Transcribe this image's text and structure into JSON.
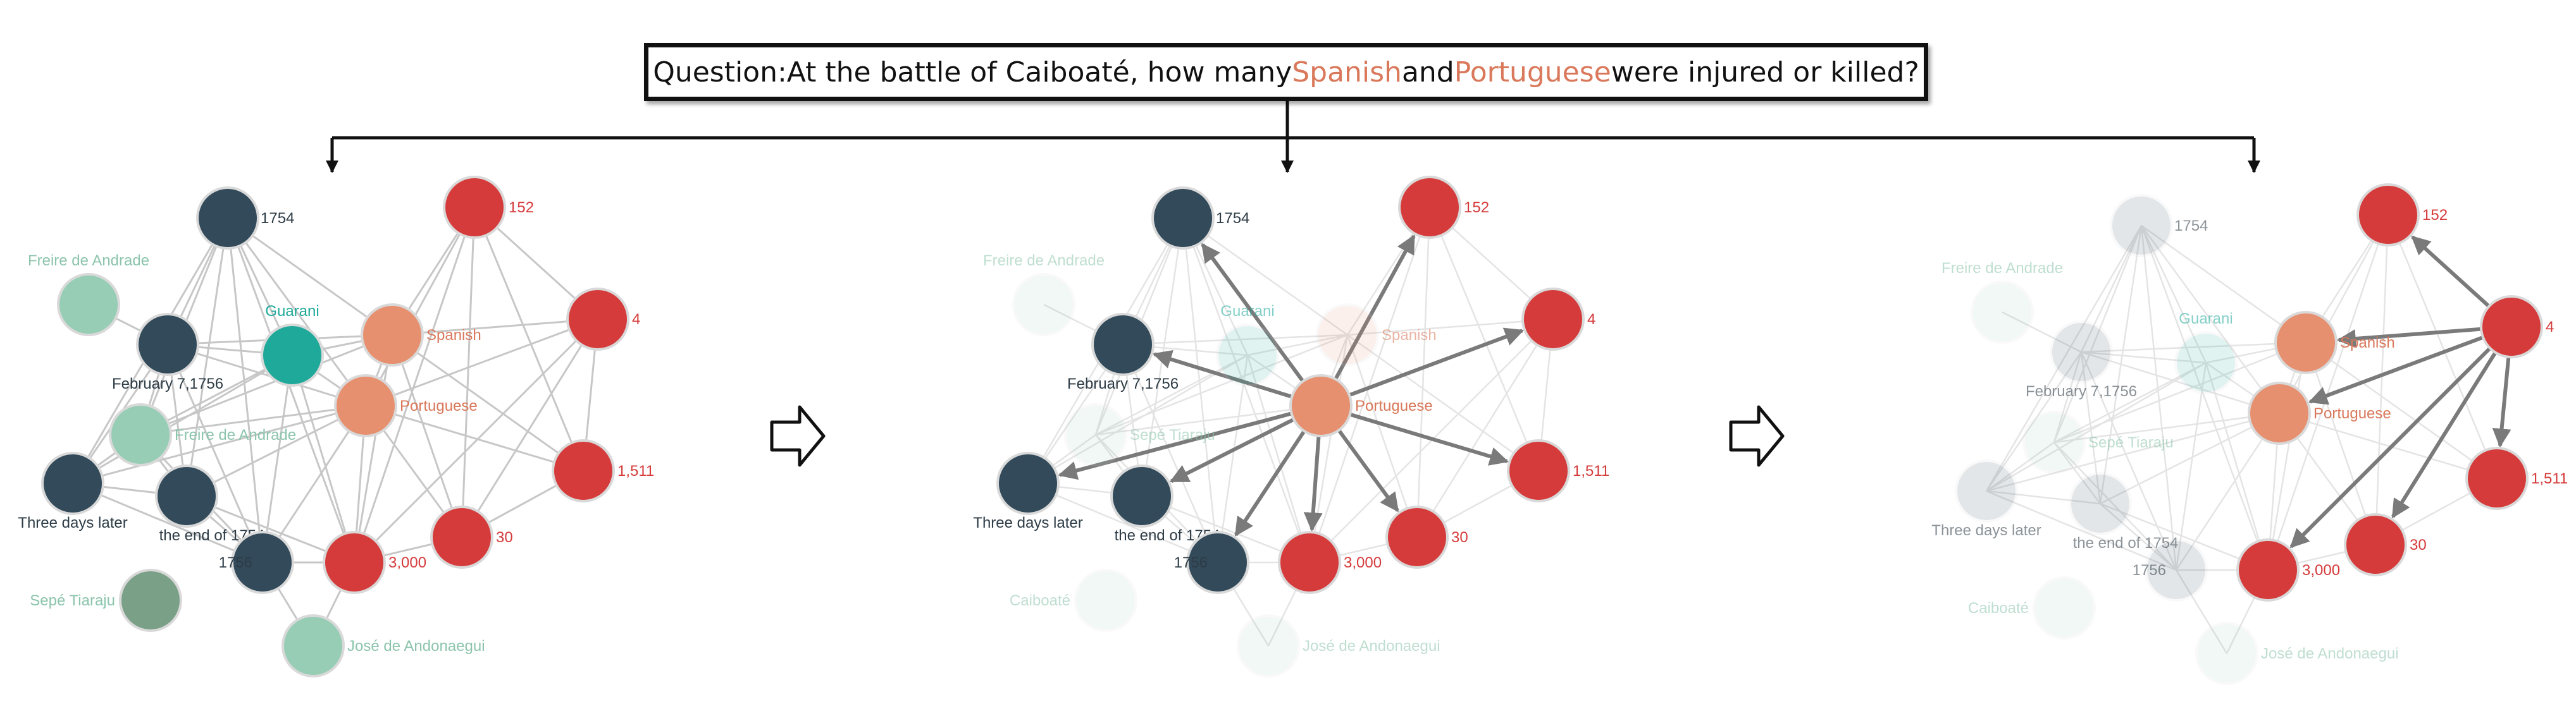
{
  "question": {
    "prefix": "Question:At the battle of Caiboaté, how many ",
    "entity1": "Spanish",
    "middle": " and ",
    "entity2": "Portuguese",
    "suffix": " were injured or killed?"
  },
  "colors": {
    "date": "#324a5a",
    "number": "#d63b3b",
    "entity": "#e69070",
    "guarani": "#1fa99a",
    "person": "#97cdb5",
    "sepe": "#7aa087",
    "edge": "#c7c7c7",
    "active_edge": "#7a7a7a",
    "label_date": "#2d3c46",
    "label_number": "#d63b3b",
    "label_entity": "#d9785a",
    "label_guarani": "#1fa99a",
    "label_person": "#8cc4ac"
  },
  "nodes": [
    {
      "id": "n1754",
      "label": "1754",
      "type": "date"
    },
    {
      "id": "freire1",
      "label": "Freire de Andrade",
      "type": "person"
    },
    {
      "id": "feb",
      "label": "February 7,1756",
      "type": "date"
    },
    {
      "id": "guarani",
      "label": "Guarani",
      "type": "guarani"
    },
    {
      "id": "spanish",
      "label": "Spanish",
      "type": "entity"
    },
    {
      "id": "portuguese",
      "label": "Portuguese",
      "type": "entity"
    },
    {
      "id": "freire2",
      "label": "Freire de Andrade",
      "type": "person"
    },
    {
      "id": "threedays",
      "label": "Three days later",
      "type": "date"
    },
    {
      "id": "endof",
      "label": "the end of 1754",
      "type": "date"
    },
    {
      "id": "n1756",
      "label": "1756",
      "type": "date"
    },
    {
      "id": "n3000",
      "label": "3,000",
      "type": "number"
    },
    {
      "id": "n30",
      "label": "30",
      "type": "number"
    },
    {
      "id": "n1511",
      "label": "1,511",
      "type": "number"
    },
    {
      "id": "n4",
      "label": "4",
      "type": "number"
    },
    {
      "id": "n152",
      "label": "152",
      "type": "number"
    },
    {
      "id": "sepe",
      "label": "Sepé Tiaraju",
      "type": "sepe"
    },
    {
      "id": "jose",
      "label": "José de Andonaegui",
      "type": "person"
    },
    {
      "id": "caiboate",
      "label": "Caiboaté",
      "type": "person"
    }
  ],
  "edges": [
    [
      "n1754",
      "feb"
    ],
    [
      "n1754",
      "guarani"
    ],
    [
      "n1754",
      "spanish"
    ],
    [
      "n1754",
      "portuguese"
    ],
    [
      "n1754",
      "threedays"
    ],
    [
      "n1754",
      "endof"
    ],
    [
      "n1754",
      "n1756"
    ],
    [
      "n1754",
      "n3000"
    ],
    [
      "n1754",
      "freire2"
    ],
    [
      "n152",
      "spanish"
    ],
    [
      "n152",
      "portuguese"
    ],
    [
      "n152",
      "n4"
    ],
    [
      "n152",
      "n30"
    ],
    [
      "n152",
      "n3000"
    ],
    [
      "n152",
      "n1511"
    ],
    [
      "n4",
      "spanish"
    ],
    [
      "n4",
      "portuguese"
    ],
    [
      "n4",
      "n1511"
    ],
    [
      "n4",
      "n30"
    ],
    [
      "n4",
      "n3000"
    ],
    [
      "spanish",
      "portuguese"
    ],
    [
      "spanish",
      "feb"
    ],
    [
      "spanish",
      "guarani"
    ],
    [
      "spanish",
      "n1511"
    ],
    [
      "spanish",
      "n30"
    ],
    [
      "spanish",
      "n3000"
    ],
    [
      "spanish",
      "freire2"
    ],
    [
      "portuguese",
      "feb"
    ],
    [
      "portuguese",
      "guarani"
    ],
    [
      "portuguese",
      "threedays"
    ],
    [
      "portuguese",
      "endof"
    ],
    [
      "portuguese",
      "n1756"
    ],
    [
      "portuguese",
      "n3000"
    ],
    [
      "portuguese",
      "n30"
    ],
    [
      "portuguese",
      "n1511"
    ],
    [
      "portuguese",
      "freire2"
    ],
    [
      "feb",
      "freire1"
    ],
    [
      "feb",
      "threedays"
    ],
    [
      "feb",
      "endof"
    ],
    [
      "feb",
      "n1756"
    ],
    [
      "feb",
      "guarani"
    ],
    [
      "feb",
      "freire2"
    ],
    [
      "guarani",
      "freire2"
    ],
    [
      "guarani",
      "n1756"
    ],
    [
      "guarani",
      "n3000"
    ],
    [
      "guarani",
      "threedays"
    ],
    [
      "freire2",
      "threedays"
    ],
    [
      "freire2",
      "endof"
    ],
    [
      "freire2",
      "n1756"
    ],
    [
      "threedays",
      "endof"
    ],
    [
      "threedays",
      "n1756"
    ],
    [
      "endof",
      "n1756"
    ],
    [
      "endof",
      "n3000"
    ],
    [
      "n1756",
      "jose"
    ],
    [
      "n1756",
      "n3000"
    ],
    [
      "n3000",
      "n30"
    ],
    [
      "n3000",
      "jose"
    ],
    [
      "n30",
      "n1511"
    ]
  ],
  "panels": [
    {
      "arrows": []
    },
    {
      "arrows": [
        [
          "portuguese",
          "n1754"
        ],
        [
          "portuguese",
          "feb"
        ],
        [
          "portuguese",
          "threedays"
        ],
        [
          "portuguese",
          "endof"
        ],
        [
          "portuguese",
          "n1756"
        ],
        [
          "portuguese",
          "n3000"
        ],
        [
          "portuguese",
          "n30"
        ],
        [
          "portuguese",
          "n1511"
        ],
        [
          "portuguese",
          "n4"
        ],
        [
          "portuguese",
          "n152"
        ]
      ]
    },
    {
      "arrows": [
        [
          "n4",
          "n152"
        ],
        [
          "n4",
          "spanish"
        ],
        [
          "n4",
          "portuguese"
        ],
        [
          "n4",
          "n1511"
        ],
        [
          "n4",
          "n30"
        ],
        [
          "n4",
          "n3000"
        ]
      ]
    }
  ]
}
